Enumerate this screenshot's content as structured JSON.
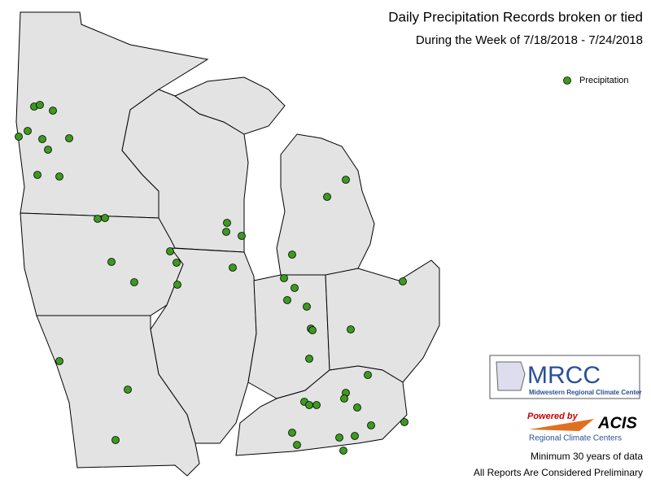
{
  "header": {
    "title": "Daily Precipitation Records broken or tied",
    "subtitle": "During the Week of 7/18/2018 - 7/24/2018"
  },
  "legend": {
    "label": "Precipitation",
    "color": "#3c9a1e"
  },
  "logos": {
    "mrcc": "MRCC",
    "mrcc_name": "Midwestern Regional Climate Center",
    "powered_by": "Powered by",
    "acis": "ACIS",
    "acis_name": "Regional Climate Centers"
  },
  "footer": {
    "note": "Minimum 30 years of data",
    "disclaimer": "All Reports Are Considered Preliminary"
  }
}
